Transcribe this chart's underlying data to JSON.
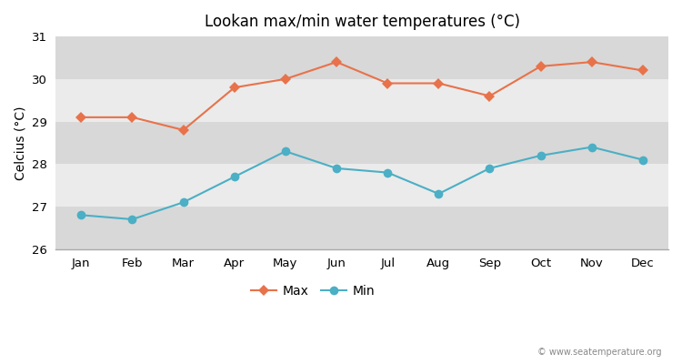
{
  "title": "Lookan max/min water temperatures (°C)",
  "ylabel": "Celcius (°C)",
  "months": [
    "Jan",
    "Feb",
    "Mar",
    "Apr",
    "May",
    "Jun",
    "Jul",
    "Aug",
    "Sep",
    "Oct",
    "Nov",
    "Dec"
  ],
  "max_temps": [
    29.1,
    29.1,
    28.8,
    29.8,
    30.0,
    30.4,
    29.9,
    29.9,
    29.6,
    30.3,
    30.4,
    30.2
  ],
  "min_temps": [
    26.8,
    26.7,
    27.1,
    27.7,
    28.3,
    27.9,
    27.8,
    27.3,
    27.9,
    28.2,
    28.4,
    28.1
  ],
  "max_color": "#e8724a",
  "min_color": "#4bafc5",
  "background_color": "#ffffff",
  "plot_bg_light": "#ebebeb",
  "plot_bg_dark": "#d8d8d8",
  "ylim": [
    26,
    31
  ],
  "yticks": [
    26,
    27,
    28,
    29,
    30,
    31
  ],
  "watermark": "© www.seatemperature.org",
  "legend_max": "Max",
  "legend_min": "Min"
}
